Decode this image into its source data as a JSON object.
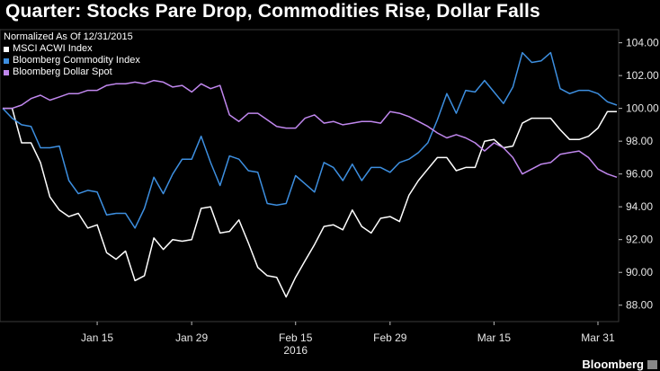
{
  "title": "Quarter: Stocks Pare Drop, Commodities Rise, Dollar Falls",
  "legend_heading": "Normalized As Of 12/31/2015",
  "brand": "Bloomberg",
  "chart_data": {
    "type": "line",
    "title": "Quarter: Stocks Pare Drop, Commodities Rise, Dollar Falls",
    "subtitle": "Normalized As Of 12/31/2015",
    "x_ticks": [
      "Jan 15",
      "Jan 29",
      "Feb 15",
      "Feb 29",
      "Mar 15",
      "Mar 31"
    ],
    "x_tick_index": [
      10,
      20,
      31,
      41,
      52,
      63
    ],
    "x_year_label": "2016",
    "y_ticks": [
      88,
      90,
      92,
      94,
      96,
      98,
      100,
      102,
      104
    ],
    "ylim": [
      87.0,
      104.8
    ],
    "y_axis_side": "right",
    "legend_position": "top-left",
    "grid": false,
    "series": [
      {
        "name": "MSCI ACWI Index",
        "color": "#ffffff",
        "values": [
          100,
          100,
          97.9,
          97.9,
          96.7,
          94.6,
          93.8,
          93.4,
          93.6,
          92.7,
          92.9,
          91.2,
          90.8,
          91.3,
          89.5,
          89.8,
          92.1,
          91.4,
          92.0,
          91.9,
          92.0,
          93.9,
          94.0,
          92.4,
          92.5,
          93.2,
          91.8,
          90.3,
          89.8,
          89.7,
          88.5,
          89.7,
          90.7,
          91.7,
          92.8,
          92.9,
          92.6,
          93.8,
          92.8,
          92.4,
          93.3,
          93.4,
          93.1,
          94.7,
          95.6,
          96.3,
          97.0,
          97.0,
          96.2,
          96.4,
          96.4,
          98.0,
          98.1,
          97.6,
          97.7,
          99.1,
          99.4,
          99.4,
          99.4,
          98.7,
          98.1,
          98.1,
          98.3,
          98.8,
          99.8,
          99.8
        ]
      },
      {
        "name": "Bloomberg Commodity Index",
        "color": "#3d8fe0",
        "values": [
          100,
          99.4,
          99.0,
          98.9,
          97.6,
          97.6,
          97.7,
          95.6,
          94.8,
          95.0,
          94.9,
          93.5,
          93.6,
          93.6,
          92.7,
          93.9,
          95.8,
          94.8,
          96.0,
          96.9,
          96.9,
          98.3,
          96.7,
          95.3,
          97.1,
          96.9,
          96.2,
          96.1,
          94.2,
          94.1,
          94.2,
          95.9,
          95.4,
          94.9,
          96.7,
          96.4,
          95.6,
          96.6,
          95.6,
          96.4,
          96.4,
          96.1,
          96.7,
          96.9,
          97.3,
          97.9,
          99.3,
          100.9,
          99.7,
          101.1,
          101.0,
          101.7,
          101.0,
          100.3,
          101.3,
          103.4,
          102.8,
          102.9,
          103.4,
          101.2,
          100.9,
          101.1,
          101.1,
          100.9,
          100.4,
          100.2
        ]
      },
      {
        "name": "Bloomberg Dollar Spot",
        "color": "#c087ee",
        "values": [
          100,
          100,
          100.2,
          100.6,
          100.8,
          100.5,
          100.7,
          100.9,
          100.9,
          101.1,
          101.1,
          101.4,
          101.5,
          101.5,
          101.6,
          101.5,
          101.7,
          101.6,
          101.3,
          101.4,
          101.0,
          101.5,
          101.2,
          101.4,
          99.6,
          99.2,
          99.7,
          99.7,
          99.3,
          98.9,
          98.8,
          98.8,
          99.4,
          99.6,
          99.1,
          99.2,
          99.0,
          99.1,
          99.2,
          99.2,
          99.1,
          99.8,
          99.7,
          99.5,
          99.2,
          98.9,
          98.5,
          98.2,
          98.4,
          98.2,
          97.9,
          97.4,
          97.9,
          97.6,
          97.0,
          96.0,
          96.3,
          96.6,
          96.7,
          97.2,
          97.3,
          97.4,
          97.0,
          96.3,
          96.0,
          95.8
        ]
      }
    ]
  }
}
